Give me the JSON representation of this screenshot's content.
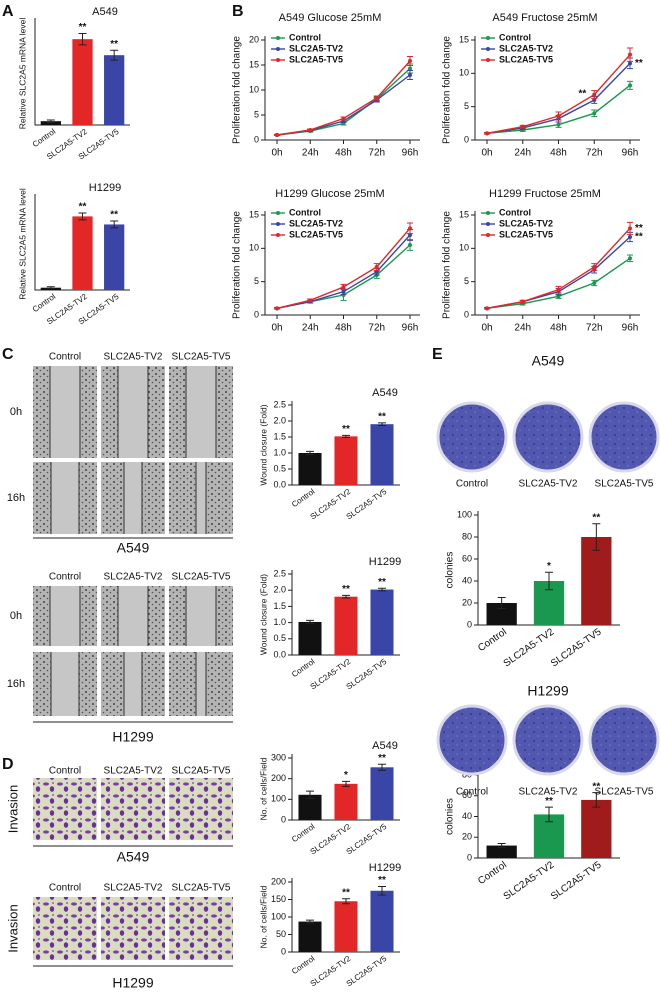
{
  "chart_data": [
    {
      "type": "bar",
      "title": "A549",
      "y_label": "Relative SLC2A5 mRNA level",
      "categories": [
        "Control",
        "SLC2A5-TV2",
        "SLC2A5-TV5"
      ],
      "values": [
        1,
        22.5,
        18.3
      ],
      "errors": [
        0.3,
        1.5,
        1.3
      ],
      "star_labels": [
        null,
        "**",
        "**"
      ],
      "colors": [
        "#111111",
        "#e32626",
        "#3a45a8"
      ],
      "ylim": [
        0,
        27
      ]
    },
    {
      "type": "bar",
      "title": "H1299",
      "y_label": "Relative SLC2A5 mRNA level",
      "categories": [
        "Control",
        "SLC2A5-TV2",
        "SLC2A5-TV5"
      ],
      "values": [
        1,
        32,
        28.5
      ],
      "errors": [
        0.4,
        1.5,
        1.5
      ],
      "star_labels": [
        null,
        "**",
        "**"
      ],
      "colors": [
        "#111111",
        "#e32626",
        "#3a45a8"
      ],
      "ylim": [
        0,
        40
      ]
    },
    {
      "type": "line",
      "title": "A549  Glucose 25mM",
      "y_label": "Proliferation fold change",
      "categories": [
        "0h",
        "24h",
        "48h",
        "72h",
        "96h"
      ],
      "ylim": [
        0,
        20
      ],
      "yticks": [
        0,
        5,
        10,
        15,
        20
      ],
      "series": [
        {
          "name": "Control",
          "color": "#1a9850",
          "values": [
            1,
            1.8,
            3.3,
            8.2,
            14.3
          ],
          "errors": [
            0.1,
            0.2,
            0.3,
            0.4,
            0.9
          ],
          "star_labels": [
            null,
            null,
            null,
            null,
            null
          ]
        },
        {
          "name": "SLC2A5-TV2",
          "color": "#3a45a8",
          "values": [
            1,
            1.9,
            3.8,
            8,
            13
          ],
          "errors": [
            0.1,
            0.2,
            0.3,
            0.4,
            0.9
          ],
          "star_labels": [
            null,
            null,
            null,
            null,
            null
          ]
        },
        {
          "name": "SLC2A5-TV5",
          "color": "#e32626",
          "values": [
            1,
            2,
            4.3,
            8.4,
            15.8
          ],
          "errors": [
            0.1,
            0.2,
            0.3,
            0.4,
            0.9
          ],
          "star_labels": [
            null,
            null,
            null,
            null,
            null
          ]
        }
      ]
    },
    {
      "type": "line",
      "title": "A549  Fructose 25mM",
      "y_label": "Proliferation fold change",
      "categories": [
        "0h",
        "24h",
        "48h",
        "72h",
        "96h"
      ],
      "ylim": [
        0,
        15
      ],
      "yticks": [
        0,
        5,
        10,
        15
      ],
      "series": [
        {
          "name": "Control",
          "color": "#1a9850",
          "values": [
            1,
            1.5,
            2.3,
            4,
            8.2
          ],
          "errors": [
            0.1,
            0.2,
            0.4,
            0.5,
            0.6
          ],
          "star_labels": [
            null,
            null,
            null,
            null,
            null
          ]
        },
        {
          "name": "SLC2A5-TV2",
          "color": "#3a45a8",
          "values": [
            1,
            1.8,
            3.2,
            6,
            11.5
          ],
          "errors": [
            0.1,
            0.2,
            0.5,
            0.5,
            0.8
          ],
          "star_labels": [
            null,
            null,
            null,
            "**",
            "**"
          ]
        },
        {
          "name": "SLC2A5-TV5",
          "color": "#e32626",
          "values": [
            1,
            2,
            3.6,
            6.8,
            12.8
          ],
          "errors": [
            0.1,
            0.2,
            0.6,
            0.6,
            1
          ]
        }
      ]
    },
    {
      "type": "line",
      "title": "H1299 Glucose 25mM",
      "y_label": "Proliferation fold change",
      "categories": [
        "0h",
        "24h",
        "48h",
        "72h",
        "96h"
      ],
      "ylim": [
        0,
        15
      ],
      "yticks": [
        0,
        5,
        10,
        15
      ],
      "series": [
        {
          "name": "Control",
          "color": "#1a9850",
          "values": [
            1,
            2,
            3,
            6,
            10.5
          ],
          "errors": [
            0.1,
            0.2,
            0.8,
            0.5,
            0.8
          ]
        },
        {
          "name": "SLC2A5-TV2",
          "color": "#3a45a8",
          "values": [
            1,
            2,
            3.5,
            6.5,
            12
          ],
          "errors": [
            0.1,
            0.2,
            0.4,
            0.5,
            0.8
          ]
        },
        {
          "name": "SLC2A5-TV5",
          "color": "#e32626",
          "values": [
            1,
            2.2,
            4.2,
            7.2,
            13
          ],
          "errors": [
            0.1,
            0.2,
            0.4,
            0.5,
            0.8
          ]
        }
      ]
    },
    {
      "type": "line",
      "title": "H1299  Fructose 25mM",
      "y_label": "Proliferation fold change",
      "categories": [
        "0h",
        "24h",
        "48h",
        "72h",
        "96h"
      ],
      "ylim": [
        0,
        15
      ],
      "yticks": [
        0,
        5,
        10,
        15
      ],
      "series": [
        {
          "name": "Control",
          "color": "#1a9850",
          "values": [
            1,
            1.7,
            2.8,
            4.8,
            8.5
          ],
          "errors": [
            0.1,
            0.2,
            0.3,
            0.4,
            0.5
          ]
        },
        {
          "name": "SLC2A5-TV2",
          "color": "#3a45a8",
          "values": [
            1,
            2,
            3.5,
            6.8,
            11.7
          ],
          "errors": [
            0.1,
            0.2,
            0.5,
            0.5,
            0.7
          ],
          "star_labels": [
            null,
            null,
            null,
            null,
            "**"
          ]
        },
        {
          "name": "SLC2A5-TV5",
          "color": "#e32626",
          "values": [
            1,
            2,
            3.8,
            7.2,
            13
          ],
          "errors": [
            0.1,
            0.2,
            0.5,
            0.5,
            0.9
          ],
          "star_labels": [
            null,
            null,
            null,
            null,
            "**"
          ]
        }
      ]
    },
    {
      "type": "bar",
      "title": "A549",
      "y_label": "Wound closure (Fold)",
      "categories": [
        "Control",
        "SLC2A5-TV2",
        "SLC2A5-TV5"
      ],
      "values": [
        1,
        1.52,
        1.9
      ],
      "errors": [
        0.05,
        0.03,
        0.04
      ],
      "star_labels": [
        null,
        "**",
        "**"
      ],
      "colors": [
        "#111111",
        "#e32626",
        "#3a45a8"
      ],
      "ylim": [
        0,
        2.5
      ],
      "yticks": [
        {
          "value": 0,
          "label": "0.0"
        },
        0.5,
        {
          "value": 1,
          "label": "1.0"
        },
        1.5,
        {
          "value": 2,
          "label": "2.0"
        },
        2.5
      ]
    },
    {
      "type": "bar",
      "title": "H1299",
      "y_label": "Wound closure (Fold)",
      "categories": [
        "Control",
        "SLC2A5-TV2",
        "SLC2A5-TV5"
      ],
      "values": [
        1.02,
        1.8,
        2.02
      ],
      "errors": [
        0.05,
        0.04,
        0.04
      ],
      "star_labels": [
        null,
        "**",
        "**"
      ],
      "colors": [
        "#111111",
        "#e32626",
        "#3a45a8"
      ],
      "ylim": [
        0,
        2.5
      ],
      "yticks": [
        {
          "value": 0,
          "label": "0.0"
        },
        0.5,
        {
          "value": 1,
          "label": "1.0"
        },
        1.5,
        {
          "value": 2,
          "label": "2.0"
        },
        2.5
      ]
    },
    {
      "type": "bar",
      "title": "A549",
      "y_label": "No. of cells/Field",
      "categories": [
        "Control",
        "SLC2A5-TV2",
        "SLC2A5-TV5"
      ],
      "values": [
        122,
        175,
        255
      ],
      "errors": [
        18,
        12,
        15
      ],
      "star_labels": [
        null,
        "*",
        "**"
      ],
      "colors": [
        "#111111",
        "#e32626",
        "#3a45a8"
      ],
      "ylim": [
        0,
        300
      ],
      "yticks": [
        0,
        100,
        200,
        300
      ]
    },
    {
      "type": "bar",
      "title": "H1299",
      "y_label": "No. of cells/Field",
      "categories": [
        "Control",
        "SLC2A5-TV2",
        "SLC2A5-TV5"
      ],
      "values": [
        87,
        145,
        175
      ],
      "errors": [
        4,
        7,
        12
      ],
      "star_labels": [
        null,
        "**",
        "**"
      ],
      "colors": [
        "#111111",
        "#e32626",
        "#3a45a8"
      ],
      "ylim": [
        0,
        200
      ],
      "yticks": [
        0,
        50,
        100,
        150,
        200
      ]
    },
    {
      "type": "bar",
      "y_label": "colonies",
      "categories": [
        "Control",
        "SLC2A5-TV2",
        "SLC2A5-TV5"
      ],
      "values": [
        20,
        40,
        80
      ],
      "errors": [
        5,
        8,
        12
      ],
      "star_labels": [
        null,
        "*",
        "**"
      ],
      "colors": [
        "#111111",
        "#1a9850",
        "#a01c1c"
      ],
      "ylim": [
        0,
        100
      ],
      "yticks": [
        0,
        20,
        40,
        60,
        80,
        100
      ]
    },
    {
      "type": "bar",
      "y_label": "colonies",
      "categories": [
        "Control",
        "SLC2A5-TV2",
        "SLC2A5-TV5"
      ],
      "values": [
        12,
        42,
        56
      ],
      "errors": [
        2,
        7,
        7
      ],
      "star_labels": [
        null,
        "**",
        "**"
      ],
      "colors": [
        "#111111",
        "#1a9850",
        "#a01c1c"
      ],
      "ylim": [
        0,
        80
      ],
      "yticks": [
        0,
        20,
        40,
        60,
        80
      ]
    }
  ],
  "figure": {
    "panel_letters": [
      "A",
      "B",
      "C",
      "D",
      "E"
    ],
    "wound": [
      {
        "columns": [
          "Control",
          "SLC2A5-TV2",
          "SLC2A5-TV5"
        ],
        "rows": [
          "0h",
          "16h"
        ],
        "cell_line": "A549"
      },
      {
        "columns": [
          "Control",
          "SLC2A5-TV2",
          "SLC2A5-TV5"
        ],
        "rows": [
          "0h",
          "16h"
        ],
        "cell_line": "H1299"
      }
    ],
    "invasion": [
      {
        "columns": [
          "Control",
          "SLC2A5-TV2",
          "SLC2A5-TV5"
        ],
        "row_label": "Invasion",
        "cell_line": "A549"
      },
      {
        "columns": [
          "Control",
          "SLC2A5-TV2",
          "SLC2A5-TV5"
        ],
        "row_label": "Invasion",
        "cell_line": "H1299"
      }
    ],
    "colony": [
      {
        "cell_line": "A549",
        "columns": [
          "Control",
          "SLC2A5-TV2",
          "SLC2A5-TV5"
        ]
      },
      {
        "cell_line": "H1299",
        "columns": [
          "Control",
          "SLC2A5-TV2",
          "SLC2A5-TV5"
        ]
      }
    ]
  }
}
